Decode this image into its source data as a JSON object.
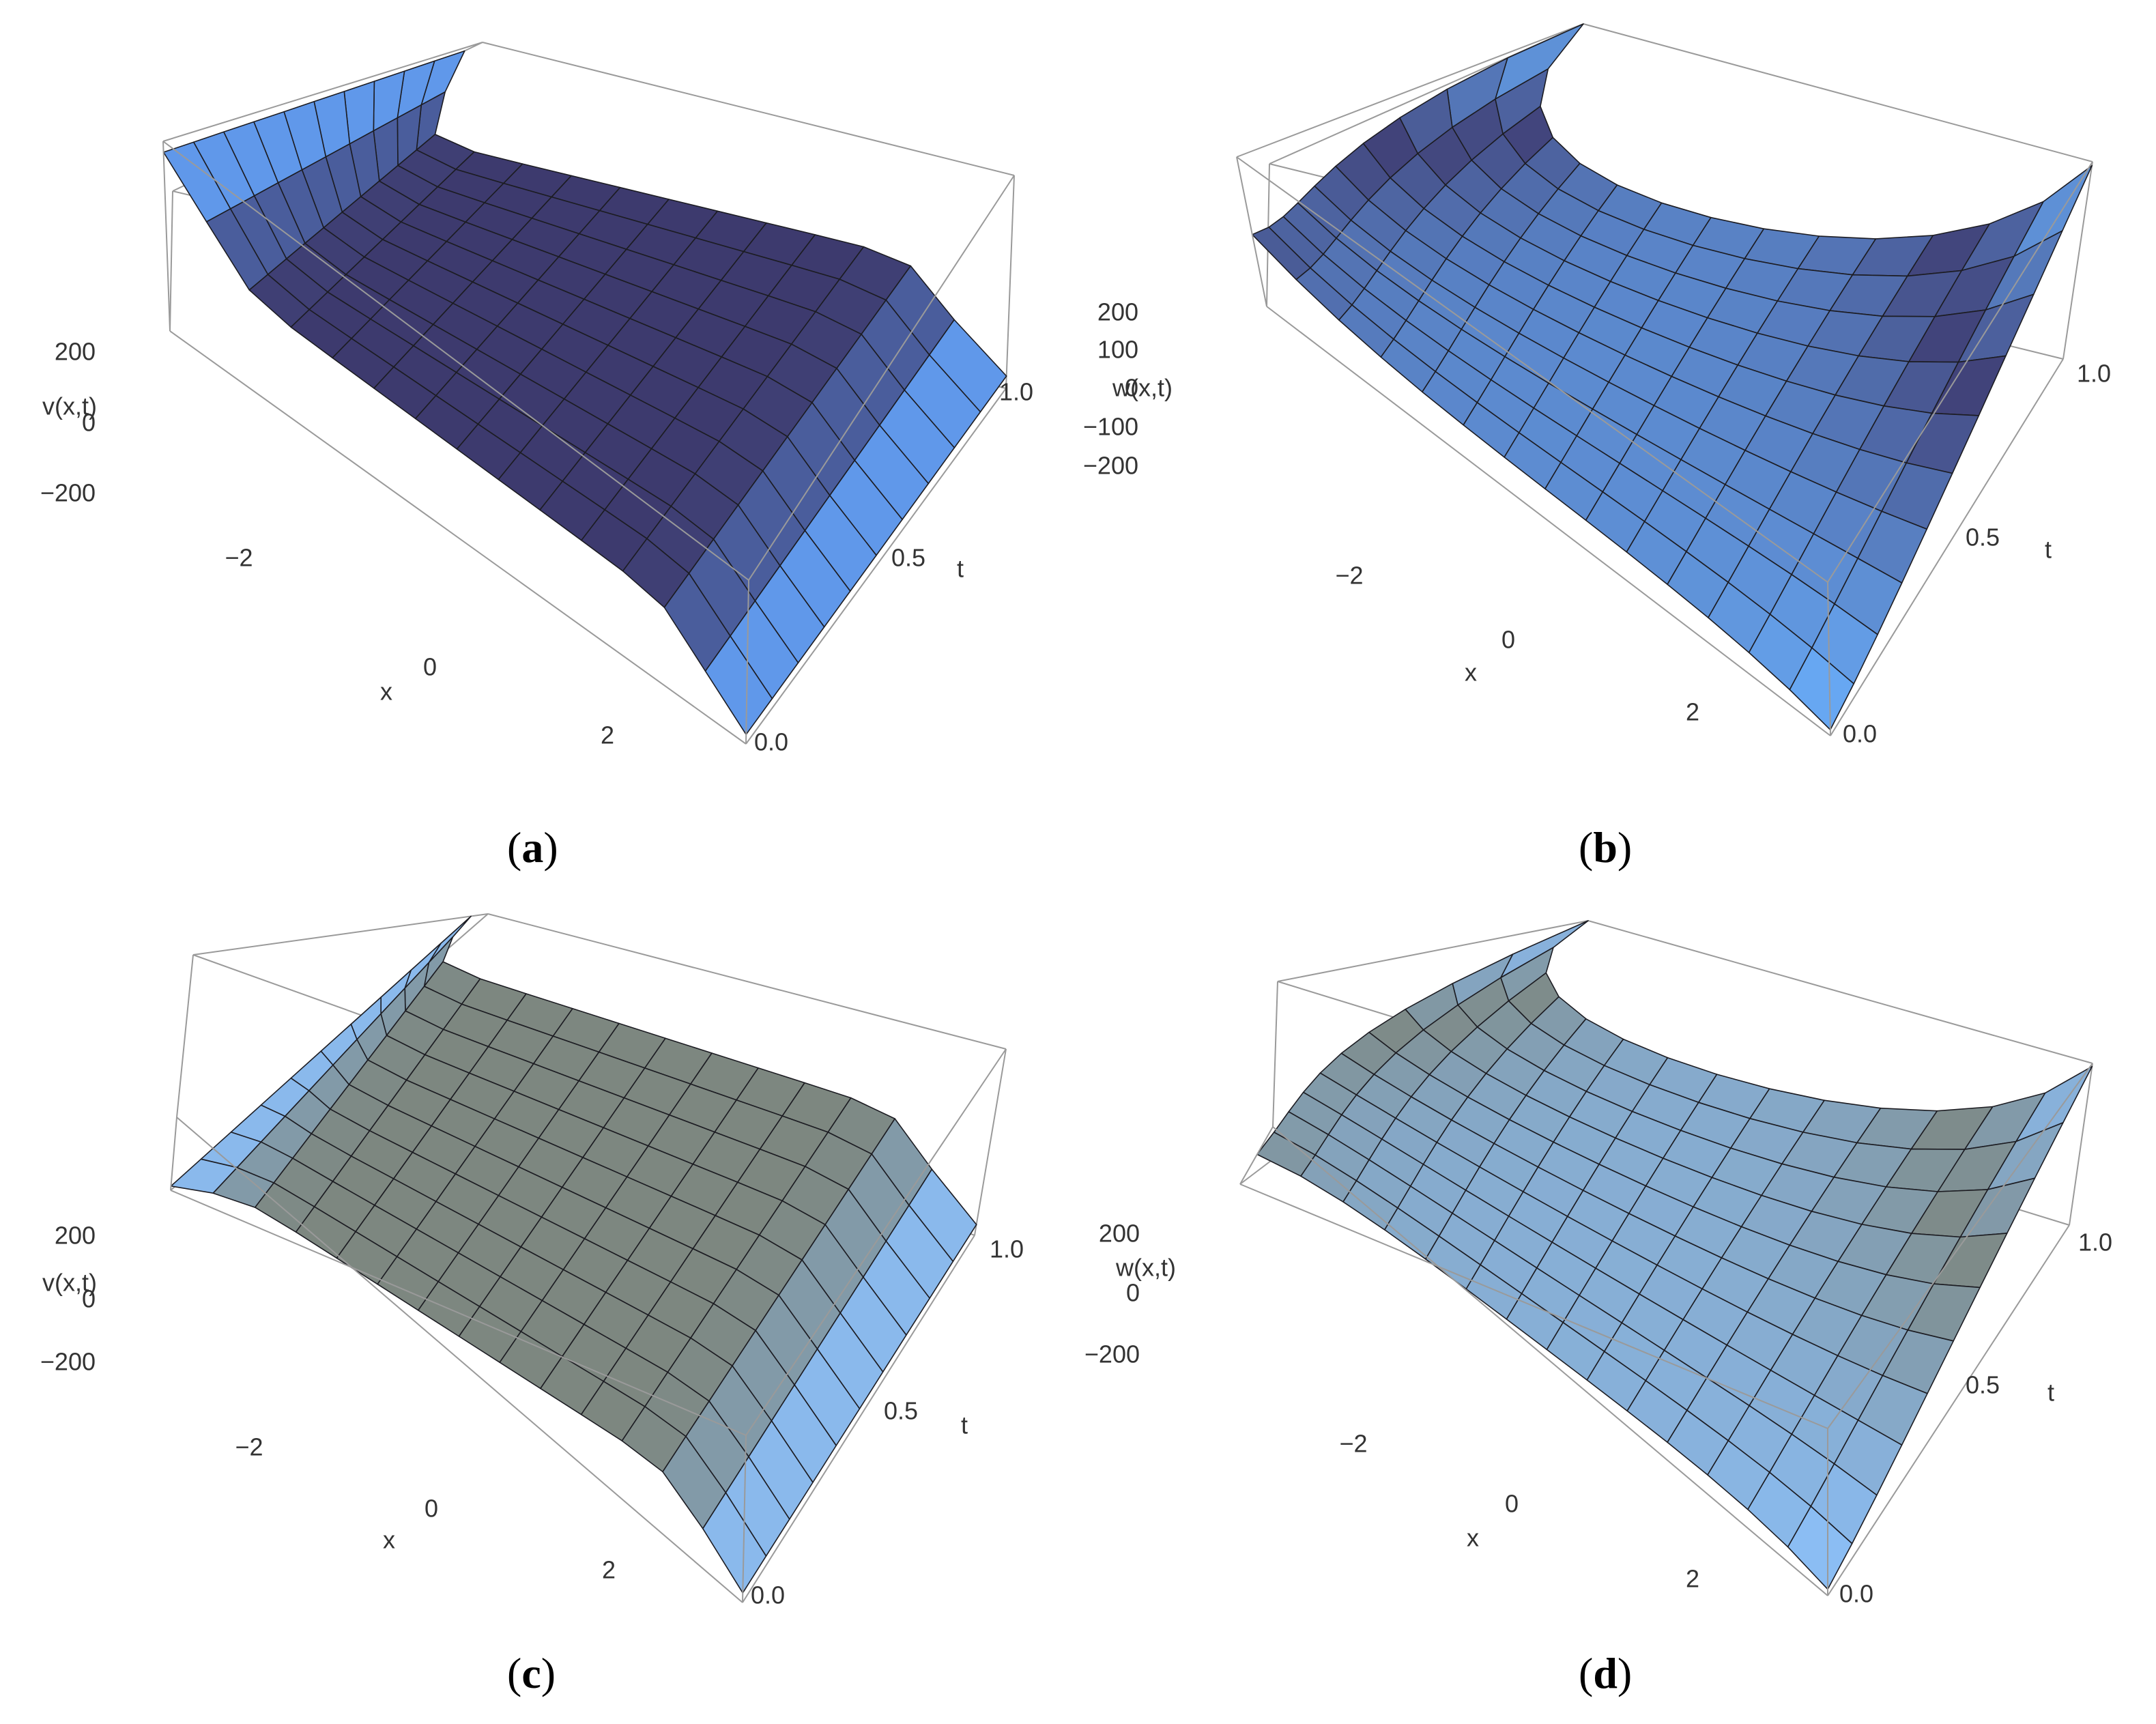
{
  "figure": {
    "panels": [
      {
        "id": "a",
        "label": "a",
        "zlabel": "v(x,t)",
        "xlabel": "x",
        "tlabel": "t",
        "xticks": [
          "−2",
          "0",
          "2"
        ],
        "tticks": [
          "0.0",
          "0.5",
          "1.0"
        ],
        "zticks": [
          "200",
          "0",
          "−200"
        ]
      },
      {
        "id": "b",
        "label": "b",
        "zlabel": "w(x,t)",
        "xlabel": "x",
        "tlabel": "t",
        "xticks": [
          "−2",
          "0",
          "2"
        ],
        "tticks": [
          "0.0",
          "0.5",
          "1.0"
        ],
        "zticks": [
          "200",
          "100",
          "0",
          "−100",
          "−200"
        ]
      },
      {
        "id": "c",
        "label": "c",
        "zlabel": "v(x,t)",
        "xlabel": "x",
        "tlabel": "t",
        "xticks": [
          "−2",
          "0",
          "2"
        ],
        "tticks": [
          "0.0",
          "0.5",
          "1.0"
        ],
        "zticks": [
          "200",
          "0",
          "−200"
        ]
      },
      {
        "id": "d",
        "label": "d",
        "zlabel": "w(x,t)",
        "xlabel": "x",
        "tlabel": "t",
        "xticks": [
          "−2",
          "0",
          "2"
        ],
        "tticks": [
          "0.0",
          "0.5",
          "1.0"
        ],
        "zticks": [
          "200",
          "0",
          "−200"
        ]
      }
    ]
  },
  "chart_data": [
    {
      "type": "surface",
      "panel": "a",
      "zlabel": "v(x,t)",
      "xlabel": "x",
      "ylabel": "t",
      "xlim": [
        -3.14,
        3.14
      ],
      "tlim": [
        0,
        1
      ],
      "zlim": [
        -260,
        260
      ],
      "x_ticks": [
        -2,
        0,
        2
      ],
      "t_ticks": [
        0,
        0.5,
        1.0
      ],
      "z_ticks": [
        200,
        0,
        -200
      ],
      "x": [
        -3.14,
        -2.71,
        -2.28,
        -1.84,
        -1.41,
        -0.97,
        -0.54,
        -0.11,
        0.33,
        0.76,
        1.2,
        1.63,
        2.07,
        2.5,
        2.94
      ],
      "t": [
        0,
        0.1,
        0.2,
        0.3,
        0.4,
        0.5,
        0.6,
        0.7,
        0.8,
        0.9,
        1.0
      ],
      "z_edges": {
        "x_min_t0": -230,
        "x_max_t0": 230,
        "x_min_t1": 230,
        "x_max_t1": -230,
        "interior": 0
      },
      "colors": {
        "high": "#66a8ff",
        "low": "#3d3a6e"
      }
    },
    {
      "type": "surface",
      "panel": "b",
      "zlabel": "w(x,t)",
      "xlabel": "x",
      "ylabel": "t",
      "xlim": [
        -3.14,
        3.14
      ],
      "tlim": [
        0,
        1
      ],
      "zlim": [
        -260,
        260
      ],
      "x_ticks": [
        -2,
        0,
        2
      ],
      "t_ticks": [
        0,
        0.5,
        1.0
      ],
      "z_ticks": [
        200,
        100,
        0,
        -100,
        -200
      ],
      "x": [
        -3.14,
        -2.71,
        -2.28,
        -1.84,
        -1.41,
        -0.97,
        -0.54,
        -0.11,
        0.33,
        0.76,
        1.2,
        1.63,
        2.07,
        2.5,
        2.94
      ],
      "t": [
        0,
        0.1,
        0.2,
        0.3,
        0.4,
        0.5,
        0.6,
        0.7,
        0.8,
        0.9,
        1.0
      ],
      "z_edges": {
        "x_min_t0": -10,
        "x_max_t0": -240,
        "x_min_t1": 260,
        "x_max_t1": 250,
        "interior": -150
      },
      "colors": {
        "high": "#6bb2ff",
        "low": "#3e3b70"
      }
    },
    {
      "type": "surface",
      "panel": "c",
      "zlabel": "v(x,t)",
      "xlabel": "x",
      "ylabel": "t",
      "xlim": [
        -3.14,
        3.14
      ],
      "tlim": [
        0,
        1
      ],
      "zlim": [
        -260,
        260
      ],
      "x_ticks": [
        -2,
        0,
        2
      ],
      "t_ticks": [
        0,
        0.5,
        1.0
      ],
      "z_ticks": [
        200,
        0,
        -200
      ],
      "x": [
        -3.14,
        -2.71,
        -2.28,
        -1.84,
        -1.41,
        -0.97,
        -0.54,
        -0.11,
        0.33,
        0.76,
        1.2,
        1.63,
        2.07,
        2.5,
        2.94
      ],
      "t": [
        0,
        0.1,
        0.2,
        0.3,
        0.4,
        0.5,
        0.6,
        0.7,
        0.8,
        0.9,
        1.0
      ],
      "z_edges": {
        "x_min_t0": -230,
        "x_max_t0": 230,
        "x_min_t1": 230,
        "x_max_t1": -230,
        "interior": 0
      },
      "colors": {
        "high": "#8cc2ff",
        "low": "#7d8780"
      }
    },
    {
      "type": "surface",
      "panel": "d",
      "zlabel": "w(x,t)",
      "xlabel": "x",
      "ylabel": "t",
      "xlim": [
        -3.14,
        3.14
      ],
      "tlim": [
        0,
        1
      ],
      "zlim": [
        -260,
        260
      ],
      "x_ticks": [
        -2,
        0,
        2
      ],
      "t_ticks": [
        0,
        0.5,
        1.0
      ],
      "z_ticks": [
        200,
        0,
        -200
      ],
      "x": [
        -3.14,
        -2.71,
        -2.28,
        -1.84,
        -1.41,
        -0.97,
        -0.54,
        -0.11,
        0.33,
        0.76,
        1.2,
        1.63,
        2.07,
        2.5,
        2.94
      ],
      "t": [
        0,
        0.1,
        0.2,
        0.3,
        0.4,
        0.5,
        0.6,
        0.7,
        0.8,
        0.9,
        1.0
      ],
      "z_edges": {
        "x_min_t0": -10,
        "x_max_t0": -240,
        "x_min_t1": 260,
        "x_max_t1": 250,
        "interior": -150
      },
      "colors": {
        "high": "#8cc2ff",
        "low": "#7d8780"
      }
    }
  ]
}
